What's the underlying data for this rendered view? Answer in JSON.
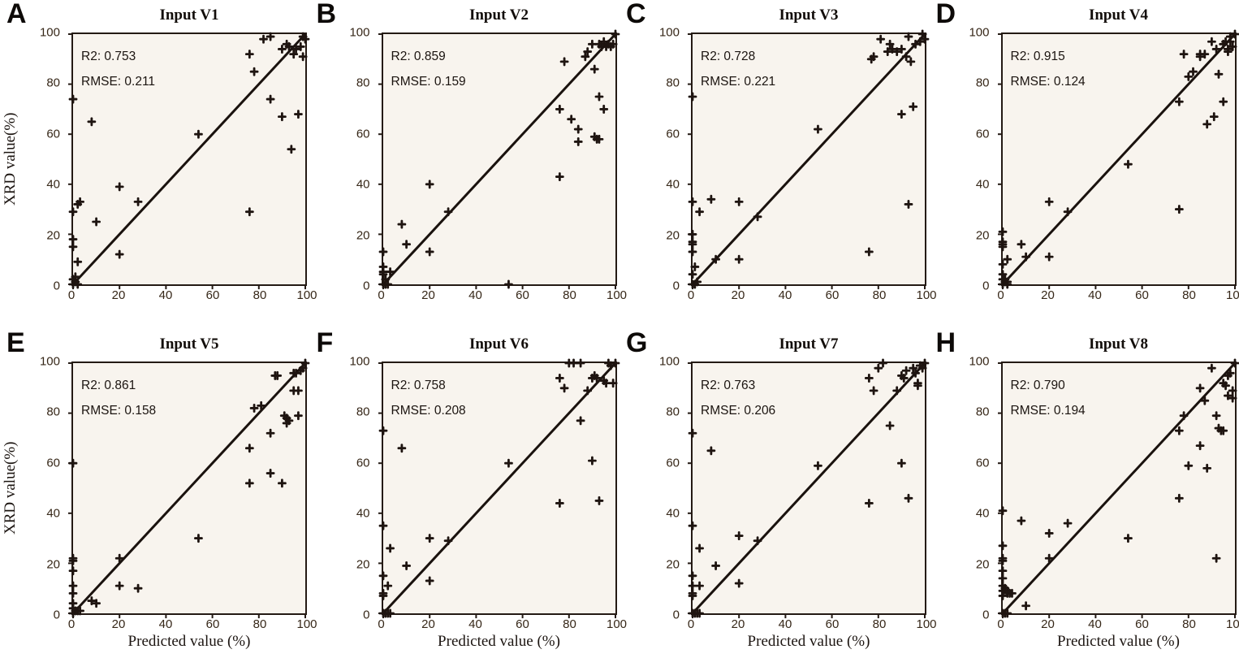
{
  "figure": {
    "x_axis_label": "Predicted value (%)",
    "y_axis_label": "XRD value(%)",
    "x_ticks": [
      0,
      20,
      40,
      60,
      80,
      100
    ],
    "y_ticks": [
      0,
      20,
      40,
      60,
      80,
      100
    ],
    "xlim": [
      0,
      100
    ],
    "ylim": [
      0,
      100
    ],
    "grid": "off",
    "legend": "none",
    "marker_style": "plus"
  },
  "colors": {
    "page_background": "#ffffff",
    "plot_background": "#f8f4ee",
    "axis": "#241a14",
    "marker": "#1e1410",
    "identity_line": "#1a120e",
    "tick_text": "#362718",
    "annotation_text": "#1b1410",
    "title_text": "#120d0a"
  },
  "chart_data": [
    {
      "type": "scatter",
      "panel_letter": "A",
      "title": "Input V1",
      "r2": 0.753,
      "rmse": 0.211,
      "r2_text": "R2: 0.753",
      "rmse_text": "RMSE: 0.211",
      "identity_line": [
        [
          0,
          0
        ],
        [
          100,
          100
        ]
      ],
      "points": [
        [
          0,
          0
        ],
        [
          1,
          1
        ],
        [
          2,
          0
        ],
        [
          0,
          2
        ],
        [
          1,
          3
        ],
        [
          0,
          74
        ],
        [
          0,
          29
        ],
        [
          0,
          18
        ],
        [
          0,
          15
        ],
        [
          2,
          9
        ],
        [
          2,
          32
        ],
        [
          3,
          33
        ],
        [
          8,
          65
        ],
        [
          10,
          25
        ],
        [
          20,
          39
        ],
        [
          20,
          12
        ],
        [
          28,
          33
        ],
        [
          54,
          60
        ],
        [
          76,
          29
        ],
        [
          76,
          92
        ],
        [
          78,
          85
        ],
        [
          82,
          98
        ],
        [
          85,
          74
        ],
        [
          85,
          99
        ],
        [
          90,
          94
        ],
        [
          90,
          67
        ],
        [
          92,
          96
        ],
        [
          93,
          95
        ],
        [
          94,
          54
        ],
        [
          95,
          92
        ],
        [
          96,
          94
        ],
        [
          97,
          68
        ],
        [
          98,
          95
        ],
        [
          99,
          91
        ],
        [
          99,
          99
        ],
        [
          100,
          98
        ]
      ]
    },
    {
      "type": "scatter",
      "panel_letter": "B",
      "title": "Input V2",
      "r2": 0.859,
      "rmse": 0.159,
      "r2_text": "R2: 0.859",
      "rmse_text": "RMSE: 0.159",
      "identity_line": [
        [
          0,
          0
        ],
        [
          100,
          100
        ]
      ],
      "points": [
        [
          0,
          0
        ],
        [
          1,
          0
        ],
        [
          2,
          0
        ],
        [
          3,
          5
        ],
        [
          0,
          4
        ],
        [
          0,
          5
        ],
        [
          0,
          7
        ],
        [
          0,
          13
        ],
        [
          1,
          2
        ],
        [
          8,
          24
        ],
        [
          10,
          16
        ],
        [
          20,
          40
        ],
        [
          20,
          13
        ],
        [
          28,
          29
        ],
        [
          54,
          0
        ],
        [
          76,
          70
        ],
        [
          76,
          43
        ],
        [
          78,
          89
        ],
        [
          81,
          66
        ],
        [
          84,
          62
        ],
        [
          84,
          57
        ],
        [
          87,
          91
        ],
        [
          88,
          93
        ],
        [
          90,
          96
        ],
        [
          91,
          86
        ],
        [
          91,
          59
        ],
        [
          92,
          58
        ],
        [
          93,
          58
        ],
        [
          93,
          75
        ],
        [
          95,
          70
        ],
        [
          93,
          96
        ],
        [
          94,
          95
        ],
        [
          95,
          97
        ],
        [
          96,
          95
        ],
        [
          97,
          96
        ],
        [
          98,
          95
        ],
        [
          99,
          96
        ],
        [
          100,
          100
        ]
      ]
    },
    {
      "type": "scatter",
      "panel_letter": "C",
      "title": "Input V3",
      "r2": 0.728,
      "rmse": 0.221,
      "r2_text": "R2: 0.728",
      "rmse_text": "RMSE: 0.221",
      "identity_line": [
        [
          0,
          0
        ],
        [
          100,
          100
        ]
      ],
      "points": [
        [
          0,
          0
        ],
        [
          1,
          0
        ],
        [
          2,
          1
        ],
        [
          0,
          4
        ],
        [
          1,
          7
        ],
        [
          0,
          13
        ],
        [
          0,
          16
        ],
        [
          0,
          17
        ],
        [
          0,
          20
        ],
        [
          0,
          33
        ],
        [
          0,
          75
        ],
        [
          3,
          29
        ],
        [
          8,
          34
        ],
        [
          10,
          10
        ],
        [
          20,
          33
        ],
        [
          20,
          10
        ],
        [
          28,
          27
        ],
        [
          54,
          62
        ],
        [
          76,
          13
        ],
        [
          77,
          90
        ],
        [
          78,
          91
        ],
        [
          81,
          98
        ],
        [
          84,
          93
        ],
        [
          85,
          96
        ],
        [
          86,
          94
        ],
        [
          88,
          93
        ],
        [
          90,
          94
        ],
        [
          90,
          68
        ],
        [
          92,
          91
        ],
        [
          93,
          32
        ],
        [
          93,
          99
        ],
        [
          94,
          89
        ],
        [
          95,
          71
        ],
        [
          96,
          96
        ],
        [
          98,
          97
        ],
        [
          99,
          100
        ],
        [
          100,
          98
        ]
      ]
    },
    {
      "type": "scatter",
      "panel_letter": "D",
      "title": "Input V4",
      "r2": 0.915,
      "rmse": 0.124,
      "r2_text": "R2: 0.915",
      "rmse_text": "RMSE: 0.124",
      "identity_line": [
        [
          0,
          0
        ],
        [
          100,
          100
        ]
      ],
      "points": [
        [
          0,
          0
        ],
        [
          1,
          1
        ],
        [
          2,
          0
        ],
        [
          0,
          2
        ],
        [
          1,
          2
        ],
        [
          2,
          1
        ],
        [
          0,
          4
        ],
        [
          0,
          8
        ],
        [
          2,
          10
        ],
        [
          0,
          15
        ],
        [
          0,
          16
        ],
        [
          0,
          17
        ],
        [
          0,
          21
        ],
        [
          8,
          16
        ],
        [
          10,
          11
        ],
        [
          20,
          33
        ],
        [
          20,
          11
        ],
        [
          28,
          29
        ],
        [
          54,
          48
        ],
        [
          76,
          73
        ],
        [
          76,
          30
        ],
        [
          78,
          92
        ],
        [
          80,
          83
        ],
        [
          82,
          85
        ],
        [
          85,
          92
        ],
        [
          85,
          91
        ],
        [
          87,
          92
        ],
        [
          88,
          64
        ],
        [
          90,
          97
        ],
        [
          91,
          67
        ],
        [
          92,
          94
        ],
        [
          93,
          84
        ],
        [
          95,
          96
        ],
        [
          95,
          73
        ],
        [
          96,
          97
        ],
        [
          97,
          94
        ],
        [
          97,
          93
        ],
        [
          98,
          97
        ],
        [
          98,
          99
        ],
        [
          99,
          95
        ],
        [
          100,
          100
        ]
      ]
    },
    {
      "type": "scatter",
      "panel_letter": "E",
      "title": "Input V5",
      "r2": 0.861,
      "rmse": 0.158,
      "r2_text": "R2: 0.861",
      "rmse_text": "RMSE: 0.158",
      "identity_line": [
        [
          0,
          0
        ],
        [
          100,
          100
        ]
      ],
      "points": [
        [
          0,
          0
        ],
        [
          1,
          1
        ],
        [
          2,
          1
        ],
        [
          3,
          1
        ],
        [
          0,
          2
        ],
        [
          0,
          4
        ],
        [
          0,
          8
        ],
        [
          0,
          11
        ],
        [
          0,
          17
        ],
        [
          0,
          21
        ],
        [
          0,
          22
        ],
        [
          0,
          60
        ],
        [
          8,
          5
        ],
        [
          10,
          4
        ],
        [
          20,
          22
        ],
        [
          20,
          11
        ],
        [
          28,
          10
        ],
        [
          54,
          30
        ],
        [
          76,
          66
        ],
        [
          76,
          52
        ],
        [
          78,
          82
        ],
        [
          81,
          83
        ],
        [
          85,
          72
        ],
        [
          85,
          56
        ],
        [
          87,
          95
        ],
        [
          88,
          95
        ],
        [
          90,
          52
        ],
        [
          91,
          79
        ],
        [
          92,
          78
        ],
        [
          92,
          76
        ],
        [
          93,
          77
        ],
        [
          95,
          96
        ],
        [
          95,
          89
        ],
        [
          96,
          96
        ],
        [
          97,
          79
        ],
        [
          97,
          89
        ],
        [
          98,
          97
        ],
        [
          99,
          98
        ],
        [
          100,
          100
        ]
      ]
    },
    {
      "type": "scatter",
      "panel_letter": "F",
      "title": "Input V6",
      "r2": 0.758,
      "rmse": 0.208,
      "r2_text": "R2: 0.758",
      "rmse_text": "RMSE: 0.208",
      "identity_line": [
        [
          0,
          0
        ],
        [
          100,
          100
        ]
      ],
      "points": [
        [
          0,
          0
        ],
        [
          1,
          0
        ],
        [
          2,
          0
        ],
        [
          3,
          0
        ],
        [
          0,
          7
        ],
        [
          0,
          8
        ],
        [
          0,
          15
        ],
        [
          0,
          35
        ],
        [
          0,
          73
        ],
        [
          2,
          11
        ],
        [
          3,
          26
        ],
        [
          8,
          66
        ],
        [
          10,
          19
        ],
        [
          20,
          30
        ],
        [
          20,
          13
        ],
        [
          28,
          29
        ],
        [
          54,
          60
        ],
        [
          76,
          94
        ],
        [
          76,
          44
        ],
        [
          78,
          90
        ],
        [
          80,
          100
        ],
        [
          82,
          100
        ],
        [
          85,
          77
        ],
        [
          85,
          100
        ],
        [
          88,
          89
        ],
        [
          90,
          61
        ],
        [
          90,
          94
        ],
        [
          91,
          95
        ],
        [
          92,
          94
        ],
        [
          93,
          45
        ],
        [
          95,
          93
        ],
        [
          96,
          92
        ],
        [
          97,
          100
        ],
        [
          98,
          99
        ],
        [
          99,
          92
        ],
        [
          100,
          100
        ]
      ]
    },
    {
      "type": "scatter",
      "panel_letter": "G",
      "title": "Input V7",
      "r2": 0.763,
      "rmse": 0.206,
      "r2_text": "R2: 0.763",
      "rmse_text": "RMSE: 0.206",
      "identity_line": [
        [
          0,
          0
        ],
        [
          100,
          100
        ]
      ],
      "points": [
        [
          0,
          0
        ],
        [
          1,
          0
        ],
        [
          2,
          0
        ],
        [
          3,
          0
        ],
        [
          0,
          7
        ],
        [
          0,
          8
        ],
        [
          0,
          11
        ],
        [
          0,
          15
        ],
        [
          0,
          35
        ],
        [
          0,
          72
        ],
        [
          3,
          26
        ],
        [
          3,
          11
        ],
        [
          8,
          65
        ],
        [
          10,
          19
        ],
        [
          20,
          31
        ],
        [
          20,
          12
        ],
        [
          28,
          29
        ],
        [
          54,
          59
        ],
        [
          76,
          94
        ],
        [
          76,
          44
        ],
        [
          78,
          89
        ],
        [
          80,
          98
        ],
        [
          82,
          100
        ],
        [
          85,
          75
        ],
        [
          88,
          89
        ],
        [
          90,
          60
        ],
        [
          90,
          95
        ],
        [
          91,
          94
        ],
        [
          92,
          97
        ],
        [
          93,
          46
        ],
        [
          95,
          98
        ],
        [
          96,
          96
        ],
        [
          97,
          92
        ],
        [
          97,
          91
        ],
        [
          98,
          99
        ],
        [
          99,
          98
        ],
        [
          100,
          100
        ]
      ]
    },
    {
      "type": "scatter",
      "panel_letter": "H",
      "title": "Input V8",
      "r2": 0.79,
      "rmse": 0.194,
      "r2_text": "R2: 0.790",
      "rmse_text": "RMSE: 0.194",
      "identity_line": [
        [
          0,
          0
        ],
        [
          100,
          100
        ]
      ],
      "points": [
        [
          0,
          0
        ],
        [
          1,
          0
        ],
        [
          2,
          0
        ],
        [
          0,
          7
        ],
        [
          0,
          9
        ],
        [
          0,
          11
        ],
        [
          0,
          14
        ],
        [
          0,
          17
        ],
        [
          0,
          21
        ],
        [
          0,
          22
        ],
        [
          0,
          27
        ],
        [
          0,
          41
        ],
        [
          1,
          10
        ],
        [
          2,
          8
        ],
        [
          2,
          9
        ],
        [
          3,
          8
        ],
        [
          4,
          8
        ],
        [
          8,
          37
        ],
        [
          10,
          3
        ],
        [
          20,
          32
        ],
        [
          20,
          22
        ],
        [
          28,
          36
        ],
        [
          54,
          30
        ],
        [
          76,
          73
        ],
        [
          76,
          46
        ],
        [
          78,
          79
        ],
        [
          80,
          59
        ],
        [
          85,
          67
        ],
        [
          85,
          90
        ],
        [
          87,
          85
        ],
        [
          88,
          58
        ],
        [
          90,
          98
        ],
        [
          92,
          22
        ],
        [
          92,
          79
        ],
        [
          93,
          74
        ],
        [
          94,
          73
        ],
        [
          95,
          92
        ],
        [
          95,
          73
        ],
        [
          96,
          91
        ],
        [
          97,
          87
        ],
        [
          97,
          95
        ],
        [
          98,
          96
        ],
        [
          99,
          89
        ],
        [
          99,
          86
        ],
        [
          100,
          100
        ]
      ]
    }
  ]
}
